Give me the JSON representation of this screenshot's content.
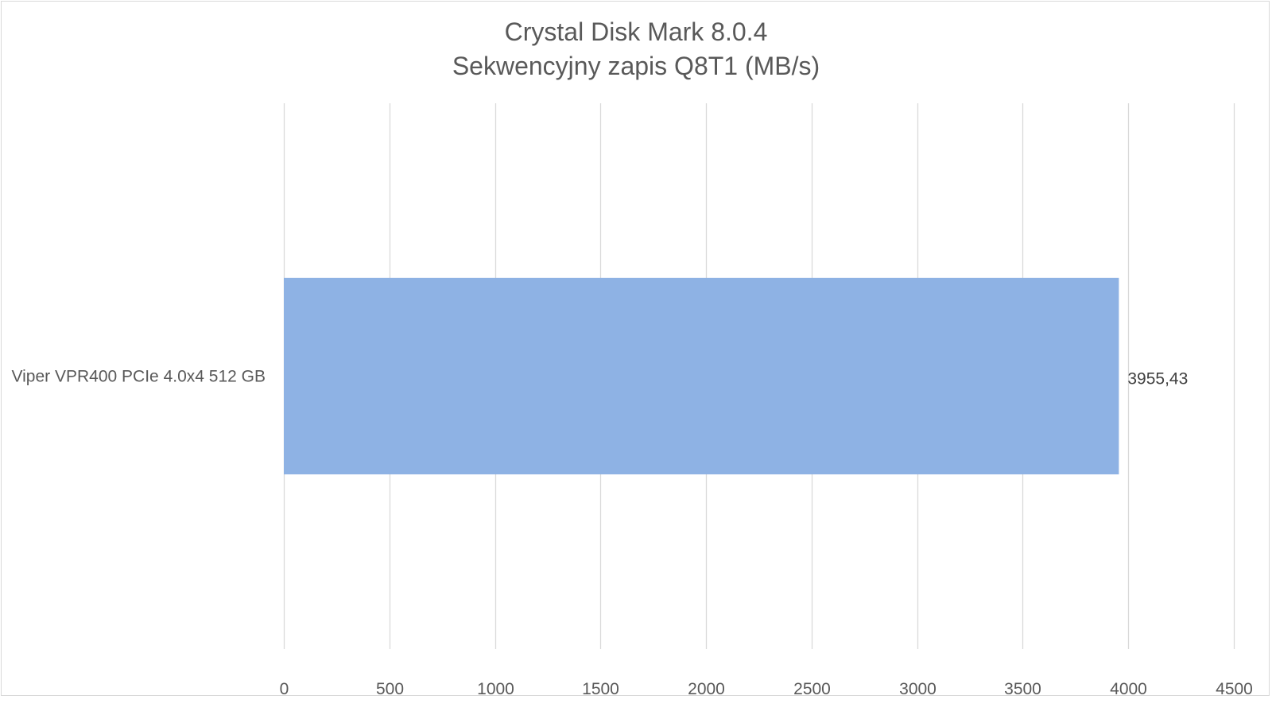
{
  "chart_data": {
    "type": "bar",
    "orientation": "horizontal",
    "title": "Crystal Disk Mark 8.0.4",
    "subtitle": "Sekwencyjny zapis Q8T1 (MB/s)",
    "categories": [
      "Viper VPR400 PCIe 4.0x4 512 GB"
    ],
    "values": [
      3955.43
    ],
    "data_labels": [
      "3955,43"
    ],
    "xlim": [
      0,
      4500
    ],
    "xticks": [
      0,
      500,
      1000,
      1500,
      2000,
      2500,
      3000,
      3500,
      4000,
      4500
    ],
    "grid": "vertical",
    "legend": "none",
    "bar_color": "#8EB2E4",
    "grid_color": "#d9d9d9"
  }
}
